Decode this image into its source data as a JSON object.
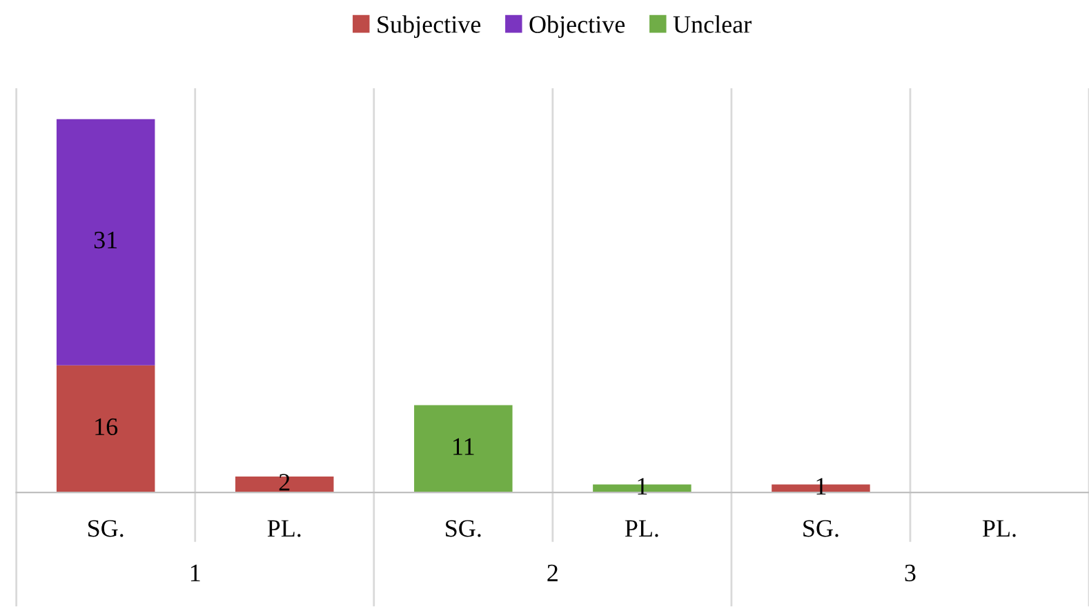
{
  "chart_data": {
    "type": "bar",
    "stacked": true,
    "data_labels": true,
    "legend": "top",
    "grid": false,
    "categories": [
      "SG.",
      "PL.",
      "SG.",
      "PL.",
      "SG.",
      "PL."
    ],
    "annotations": [
      "1",
      "2",
      "3"
    ],
    "series": [
      {
        "name": "Subjective",
        "color": "#be4b48",
        "values": [
          16,
          2,
          null,
          null,
          1,
          null
        ]
      },
      {
        "name": "Objective",
        "color": "#7b35c0",
        "values": [
          31,
          null,
          null,
          null,
          null,
          null
        ]
      },
      {
        "name": "Unclear",
        "color": "#70ad47",
        "values": [
          null,
          null,
          11,
          1,
          null,
          null
        ]
      }
    ]
  }
}
